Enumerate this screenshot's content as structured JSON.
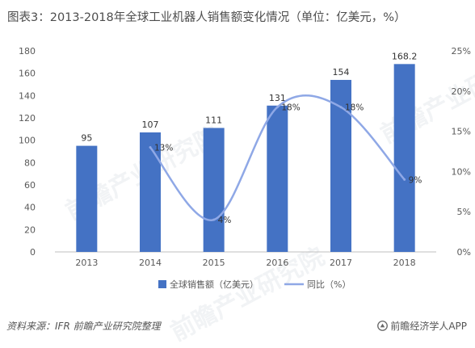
{
  "title": "图表3：2013-2018年全球工业机器人销售额变化情况（单位：亿美元，%）",
  "footer": {
    "source": "资料来源：IFR 前瞻产业研究院整理",
    "brand": "前瞻经济学人APP"
  },
  "watermark": "前瞻产业研究院",
  "colors": {
    "bar": "#4472c4",
    "line": "#8fa8e6",
    "axis": "#bfbfbf",
    "text": "#595959"
  },
  "chart_data": {
    "type": "bar",
    "categories": [
      "2013",
      "2014",
      "2015",
      "2016",
      "2017",
      "2018"
    ],
    "series": [
      {
        "name": "全球销售额（亿美元）",
        "type": "bar",
        "axis": "left",
        "values": [
          95,
          107,
          111,
          131,
          154,
          168.2
        ],
        "labels": [
          "95",
          "107",
          "111",
          "131",
          "154",
          "168.2"
        ]
      },
      {
        "name": "同比（%）",
        "type": "line",
        "axis": "right",
        "smooth": true,
        "values": [
          null,
          13,
          4,
          18,
          18,
          9
        ],
        "labels": [
          "",
          "13%",
          "4%",
          "18%",
          "18%",
          "9%"
        ]
      }
    ],
    "y_left": {
      "min": 0,
      "max": 180,
      "step": 20,
      "ticks": [
        "0",
        "20",
        "40",
        "60",
        "80",
        "100",
        "120",
        "140",
        "160",
        "180"
      ]
    },
    "y_right": {
      "min": 0,
      "max": 25,
      "step": 5,
      "ticks": [
        "0%",
        "5%",
        "10%",
        "15%",
        "20%",
        "25%"
      ]
    },
    "grid": false,
    "legend_position": "bottom"
  }
}
